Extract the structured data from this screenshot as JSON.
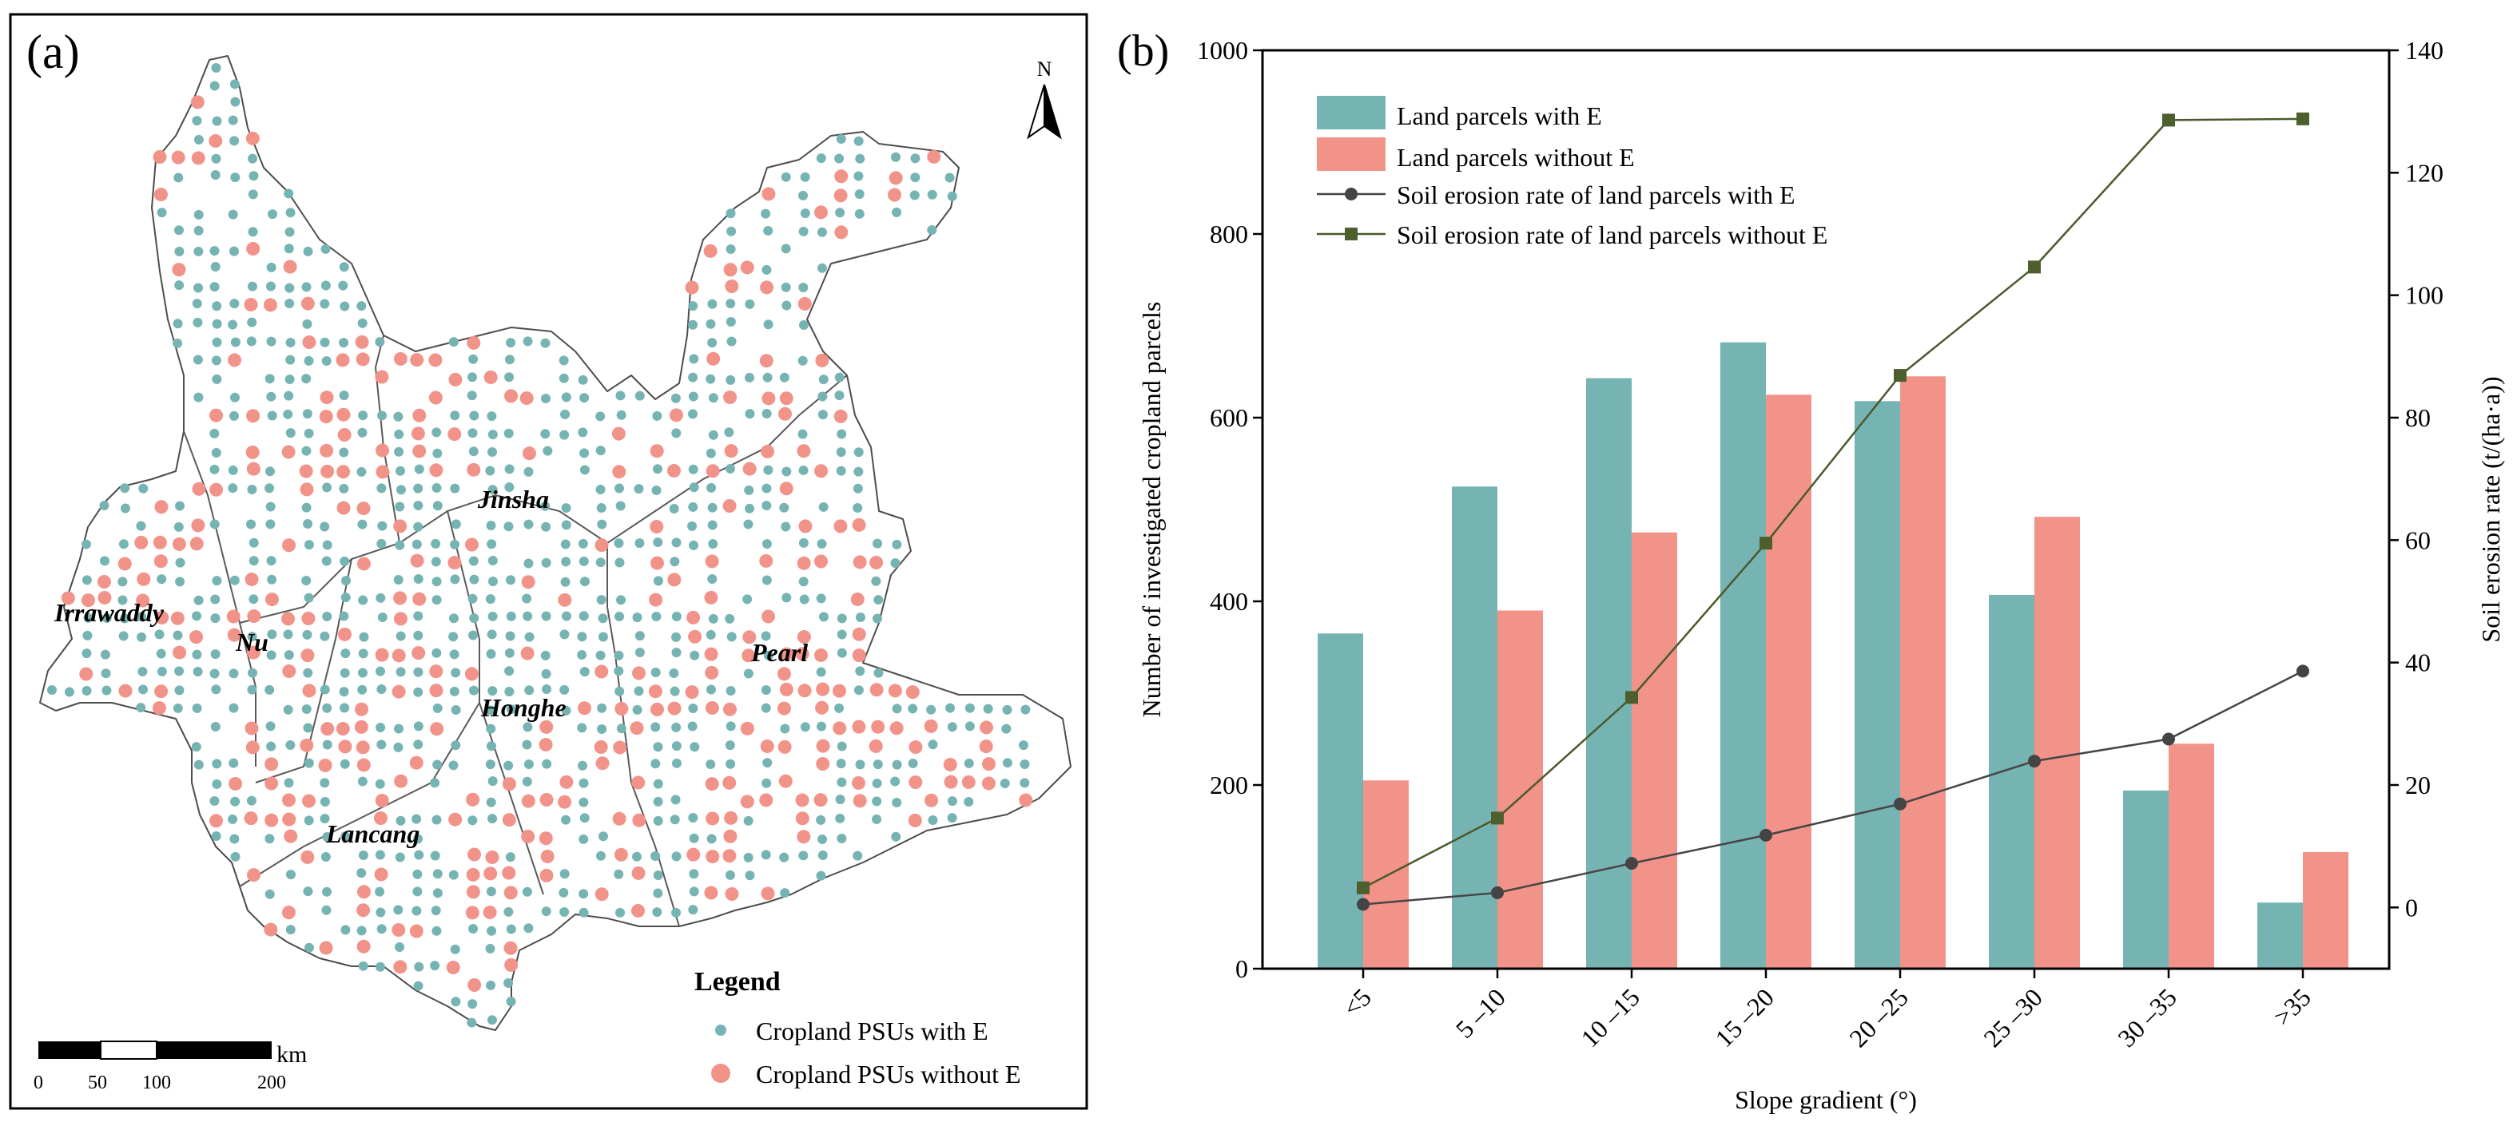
{
  "colors": {
    "with_e": "#76b4b3",
    "with_e_dark": "#5d9f9e",
    "without_e": "#f2938a",
    "rate_with": "#454545",
    "rate_without": "#4a5a2c",
    "marker_with": "#444444",
    "marker_without": "#4e5f2e"
  },
  "panel_a": {
    "label": "(a)",
    "north": "N",
    "regions": [
      "Irrawaddy",
      "Nu",
      "Jinsha",
      "Honghe",
      "Pearl",
      "Lancang"
    ],
    "legend": {
      "title": "Legend",
      "items": [
        "Cropland PSUs with E",
        "Cropland PSUs without E"
      ]
    },
    "scale": {
      "ticks": [
        "0",
        "50",
        "100",
        "200"
      ],
      "unit": "km"
    }
  },
  "panel_b": {
    "label": "(b)",
    "chart_data": {
      "type": "bar",
      "categories": [
        "<5",
        "5 –10",
        "10 –15",
        "15 –20",
        "20 –25",
        "25 –30",
        "30 –35",
        ">35"
      ],
      "xlabel": "Slope gradient (°)",
      "ylabel": "Number of investigated cropland parcels",
      "y2label": "Soil erosion rate (t/(ha·a))",
      "ylim": [
        0,
        1000
      ],
      "y2lim": [
        -10,
        140
      ],
      "yticks": [
        "0",
        "200",
        "400",
        "600",
        "800",
        "1000"
      ],
      "y2ticks": [
        "0",
        "20",
        "40",
        "60",
        "80",
        "100",
        "120",
        "140"
      ],
      "series": [
        {
          "name": "Land parcels with E",
          "kind": "bar",
          "values": [
            365,
            525,
            643,
            682,
            618,
            407,
            194,
            72
          ]
        },
        {
          "name": "Land parcels without E",
          "kind": "bar",
          "values": [
            205,
            390,
            475,
            625,
            645,
            492,
            245,
            127
          ]
        },
        {
          "name": "Soil erosion rate of land parcels with E",
          "kind": "line",
          "axis": "right",
          "values": [
            0.5,
            2.4,
            7.2,
            11.8,
            16.9,
            23.9,
            27.5,
            38.6
          ]
        },
        {
          "name": "Soil erosion rate of land parcels without E",
          "kind": "line",
          "axis": "right",
          "values": [
            3.2,
            14.6,
            34.3,
            59.5,
            86.9,
            104.6,
            128.6,
            128.8
          ]
        }
      ]
    }
  }
}
